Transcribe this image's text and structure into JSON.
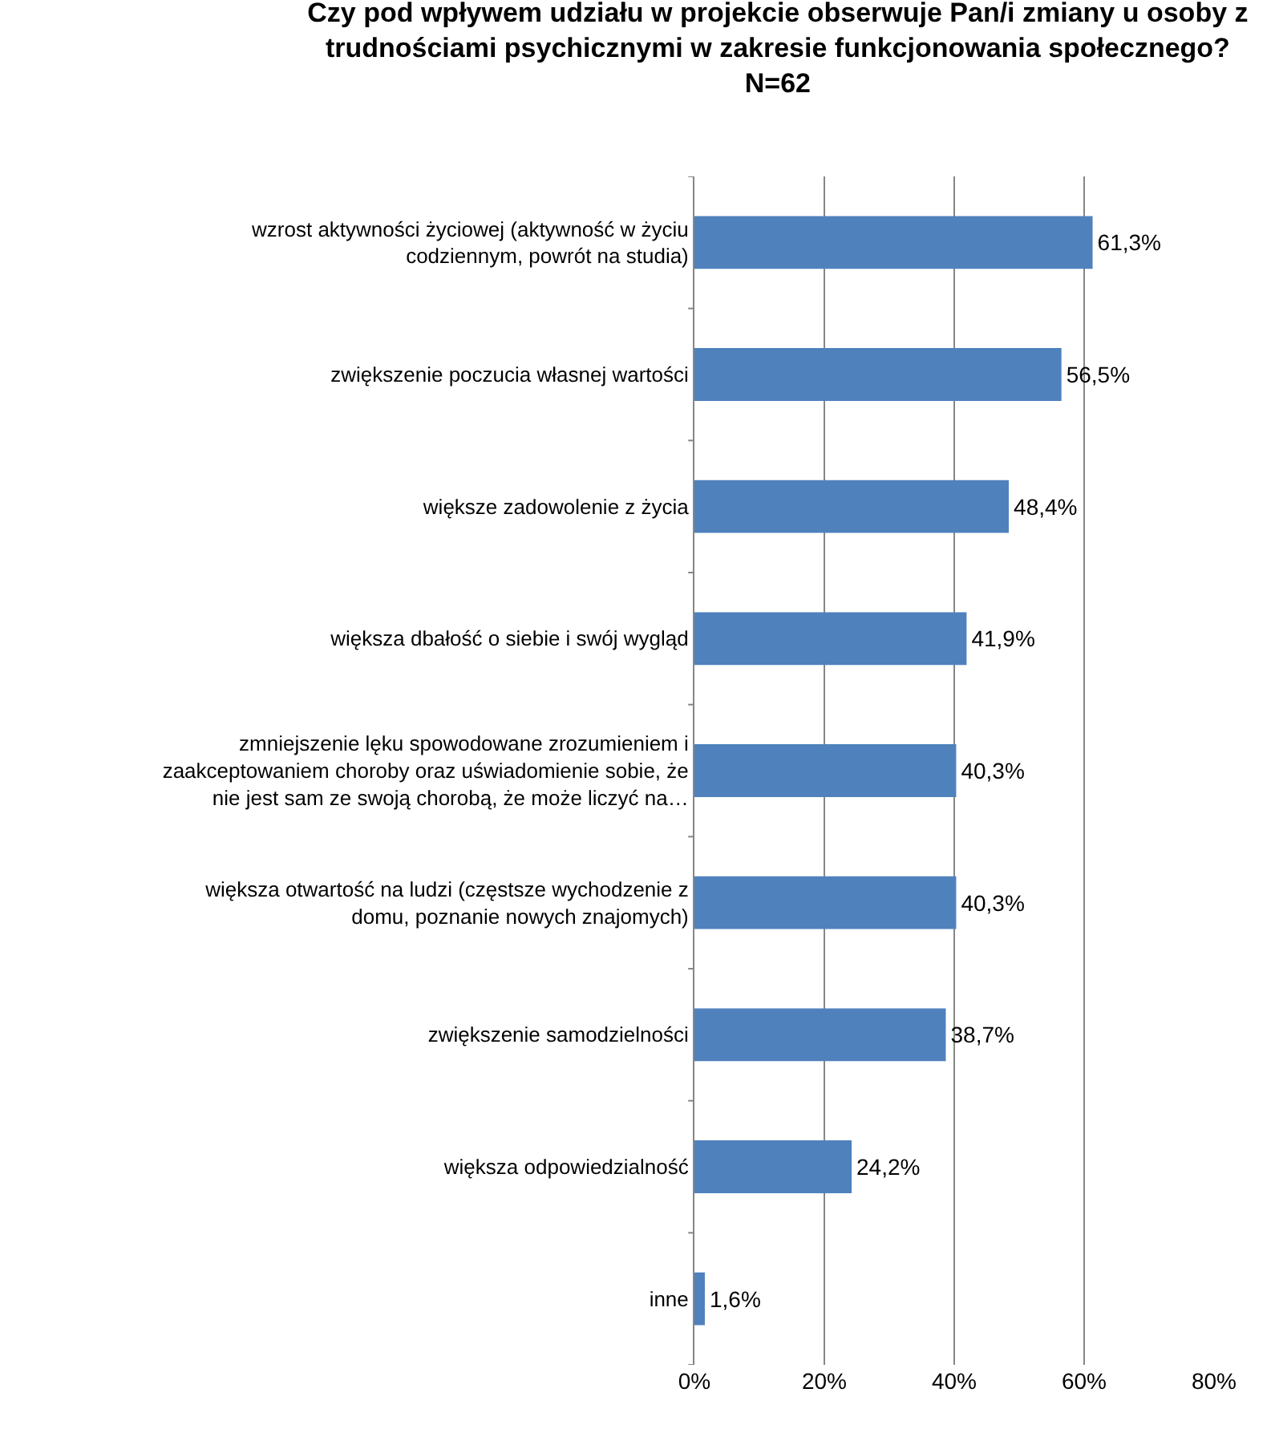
{
  "chart_data": {
    "type": "bar",
    "orientation": "horizontal",
    "title": "Czy pod wpływem udziału w projekcie obserwuje Pan/i zmiany u osoby z trudnościami psychicznymi w zakresie funkcjonowania społecznego?",
    "subtitle": "N=62",
    "categories": [
      "wzrost aktywności życiowej (aktywność w życiu codziennym, powrót na studia)",
      "zwiększenie poczucia własnej wartości",
      "większe zadowolenie z życia",
      "większa dbałość o siebie i swój wygląd",
      "zmniejszenie lęku spowodowane zrozumieniem i zaakceptowaniem choroby oraz uświadomienie sobie, że nie jest sam ze swoją chorobą, że może liczyć na…",
      "większa otwartość na ludzi (częstsze wychodzenie z domu, poznanie nowych znajomych)",
      "zwiększenie samodzielności",
      "większa odpowiedzialność",
      "inne"
    ],
    "values": [
      61.3,
      56.5,
      48.4,
      41.9,
      40.3,
      40.3,
      38.7,
      24.2,
      1.6
    ],
    "value_labels": [
      "61,3%",
      "56,5%",
      "48,4%",
      "41,9%",
      "40,3%",
      "40,3%",
      "38,7%",
      "24,2%",
      "1,6%"
    ],
    "color": "#4f81bd",
    "xlim": [
      0,
      80
    ],
    "xticks": [
      {
        "value": 0,
        "label": "0%"
      },
      {
        "value": 20,
        "label": "20%"
      },
      {
        "value": 40,
        "label": "40%"
      },
      {
        "value": 60,
        "label": "60%"
      },
      {
        "value": 80,
        "label": "80%"
      }
    ],
    "grid": "x",
    "legend": false
  }
}
